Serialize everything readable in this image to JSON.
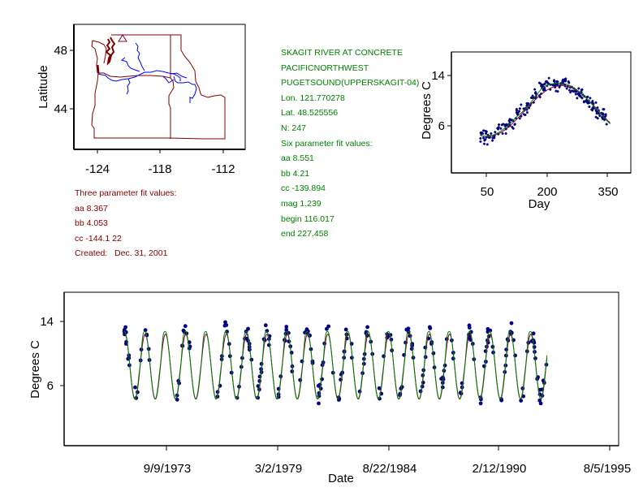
{
  "colors": {
    "map_border": "#800000",
    "rivers": "#0000ff",
    "site_marker": "#800040",
    "points": "#000080",
    "fit3": "#800040",
    "fit6": "#008000",
    "info_green": "#008000",
    "info_maroon": "#800000"
  },
  "station_info": {
    "lines": [
      "SKAGIT RIVER AT CONCRETE",
      "PACIFICNORTHWEST",
      "PUGETSOUND(UPPERSKAGIT-04)",
      "Lon. 121.770278",
      "Lat. 48.525556",
      "N: 247"
    ],
    "six_param_title": "Six parameter fit values:",
    "six_param": [
      "aa 8.551",
      "bb 4.21",
      "cc -139.894",
      "mag 1.239",
      "begin 116.017",
      "end 227.458"
    ]
  },
  "three_param": {
    "title": "Three parameter fit values:",
    "values": [
      "aa 8.367",
      "bb 4.053",
      "cc -144.1 22"
    ],
    "created": "Created:   Dec. 31, 2001"
  },
  "chart_data": [
    {
      "type": "map",
      "title": "",
      "xlabel": "",
      "ylabel": "Latitude",
      "x_ticks": [
        "-124",
        "-118",
        "-112"
      ],
      "y_ticks": [
        "48",
        "44"
      ],
      "x_tick_values": [
        -124,
        -118,
        -112
      ],
      "y_tick_values": [
        48,
        44
      ],
      "site_marker": {
        "lon": -121.770278,
        "lat": 48.525556,
        "symbol": "triangle"
      }
    },
    {
      "type": "scatter",
      "xlabel": "Day",
      "ylabel": "Degrees C",
      "x_ticks": [
        "50",
        "200",
        "350"
      ],
      "x_tick_values": [
        50,
        200,
        350
      ],
      "y_ticks": [
        "14",
        "6"
      ],
      "y_tick_values": [
        14,
        6
      ],
      "xlim": [
        -36,
        406
      ],
      "ylim": [
        -1.7,
        17.6
      ],
      "series": [
        {
          "name": "observations",
          "kind": "points",
          "n": 247
        },
        {
          "name": "three parameter fit",
          "kind": "line",
          "aa": 8.367,
          "bb": 4.053,
          "cc": -144.122
        },
        {
          "name": "six parameter fit",
          "kind": "line",
          "aa": 8.551,
          "bb": 4.21,
          "cc": -139.894,
          "mag": 1.239,
          "begin": 116.017,
          "end": 227.458
        }
      ],
      "fit_range_days": [
        35,
        355
      ]
    },
    {
      "type": "scatter",
      "xlabel": "Date",
      "ylabel": "Degrees C",
      "x_ticks": [
        "9/9/1973",
        "3/2/1979",
        "8/22/1984",
        "2/12/1990",
        "8/5/1995"
      ],
      "y_ticks": [
        "14",
        "6"
      ],
      "y_tick_values": [
        14,
        6
      ],
      "data_start_year": 1971.6,
      "data_end_year": 1992.45,
      "series": [
        {
          "name": "observations",
          "kind": "points"
        },
        {
          "name": "three parameter fit",
          "kind": "line"
        },
        {
          "name": "six parameter fit",
          "kind": "line"
        }
      ]
    }
  ]
}
